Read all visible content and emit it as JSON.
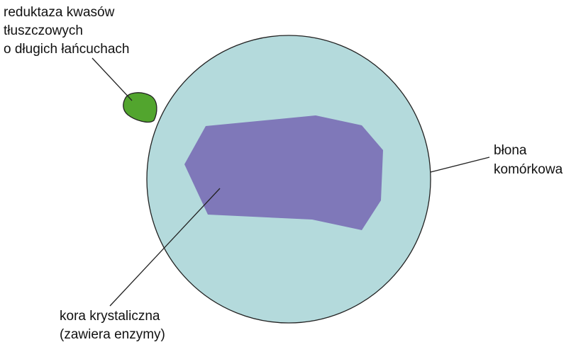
{
  "labels": {
    "enzyme": [
      "reduktaza kwasów",
      "tłuszczowych",
      "o długich łańcuchach"
    ],
    "membrane": [
      "błona",
      "komórkowa"
    ],
    "cortex": [
      "kora krystaliczna",
      "(zawiera enzymy)"
    ]
  }
}
